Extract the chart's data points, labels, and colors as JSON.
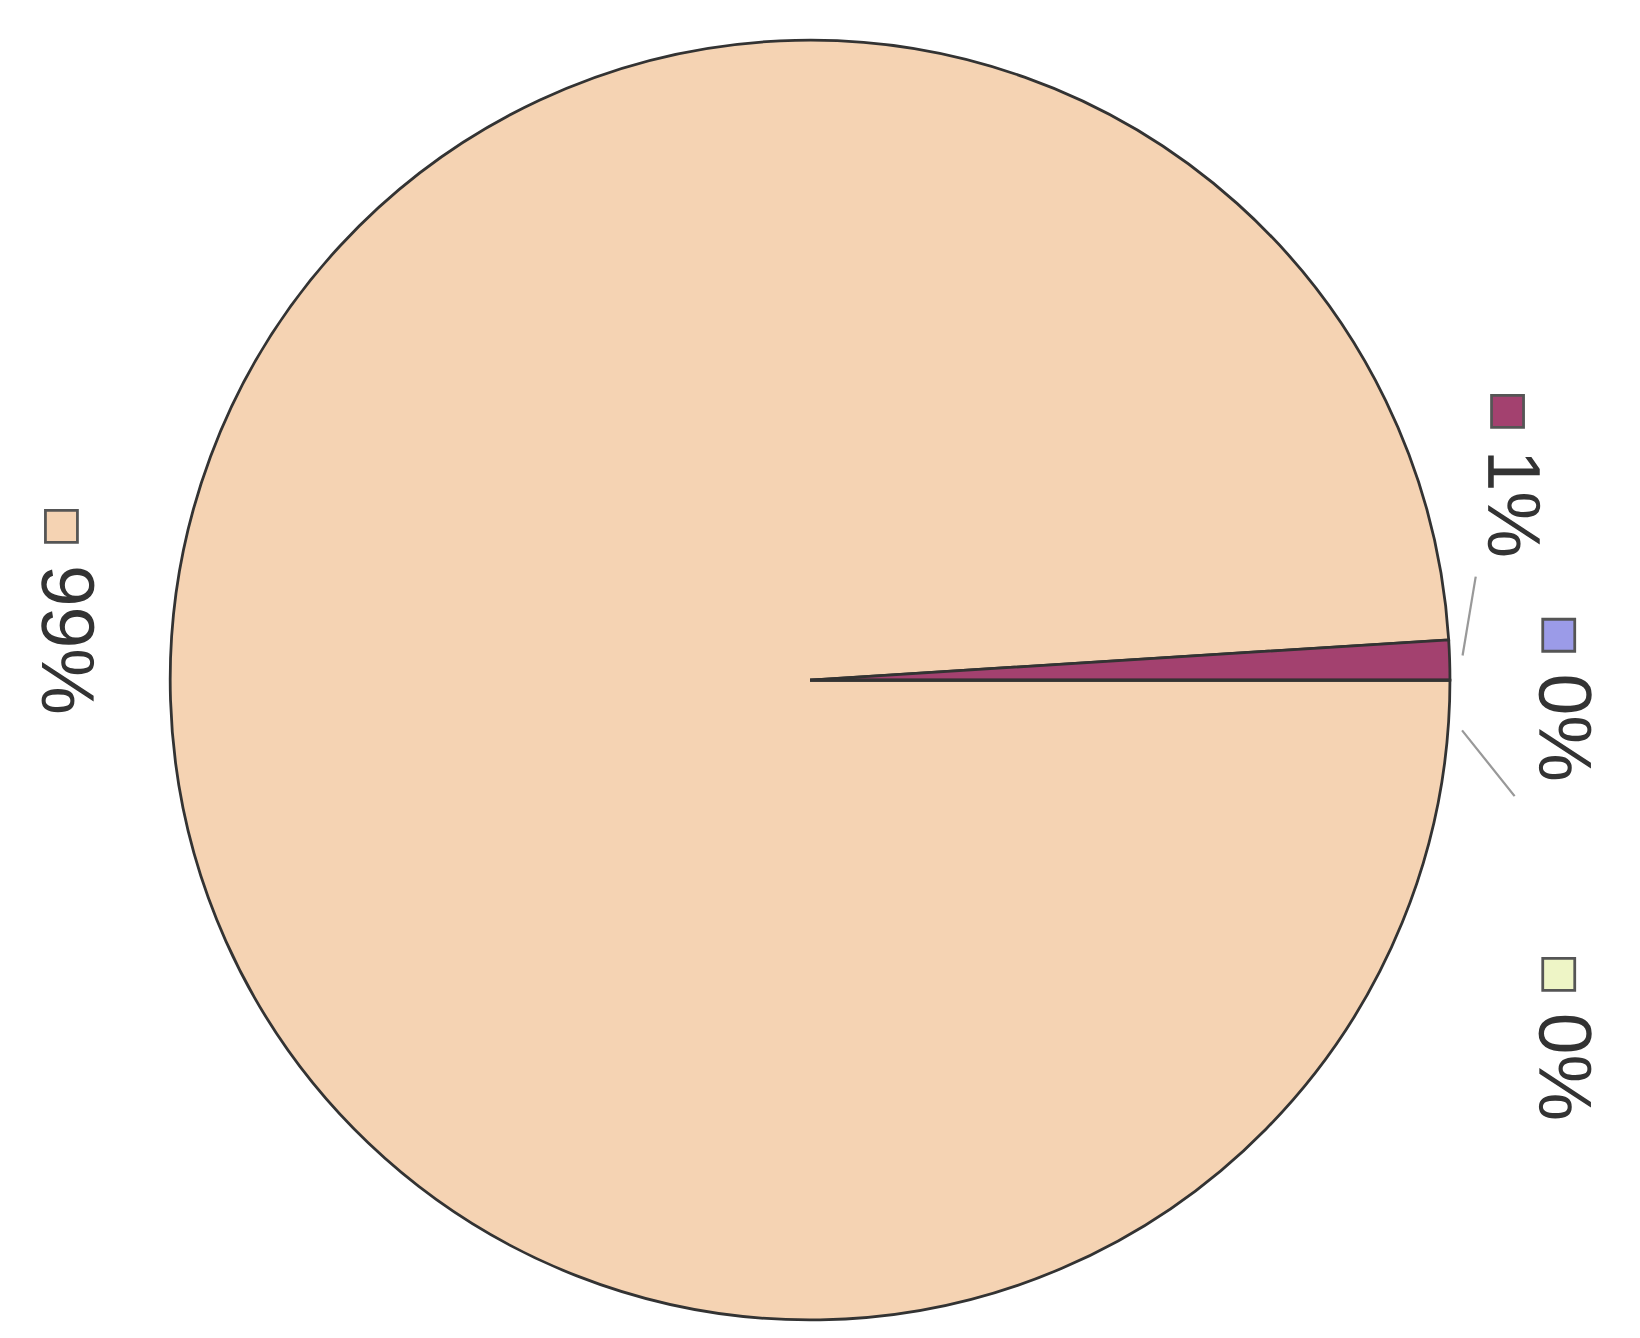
{
  "chart_data": {
    "type": "pie",
    "categories": [
      null,
      null,
      null,
      null
    ],
    "values": [
      99,
      1,
      0,
      0
    ],
    "colors": [
      "#f5d3b3",
      "#a3416f",
      "#9b9be8",
      "#eef5c6"
    ],
    "value_labels": [
      "99%",
      "1%",
      "0%",
      "0%"
    ]
  }
}
